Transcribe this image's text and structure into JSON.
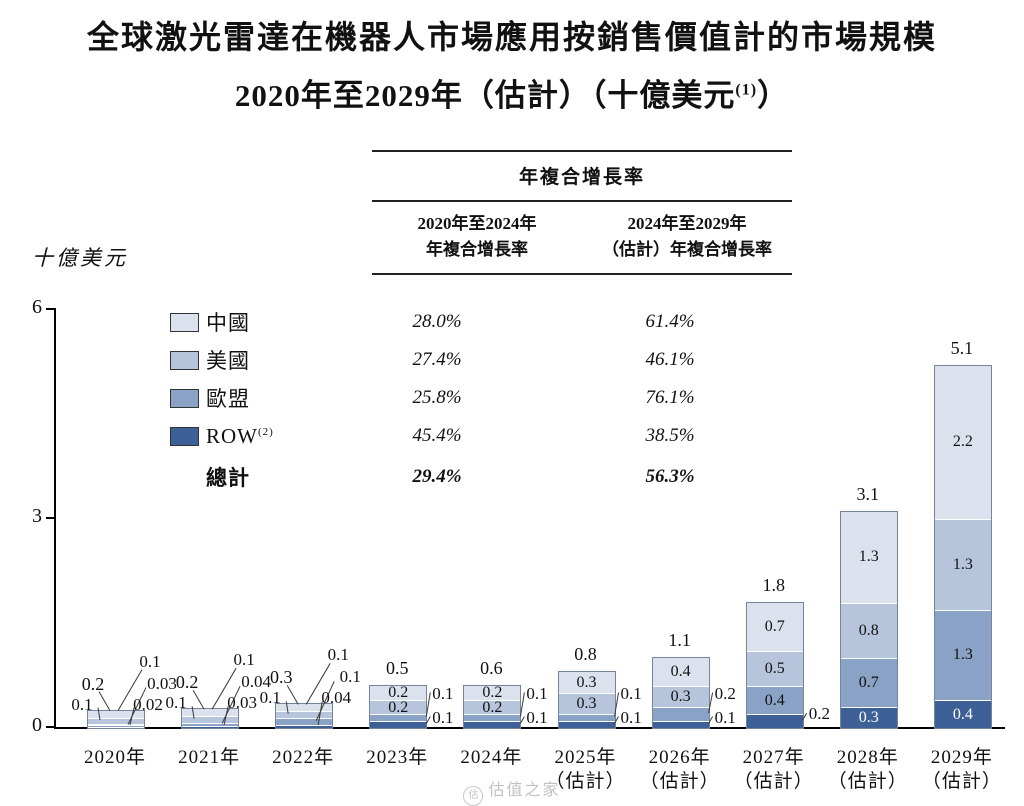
{
  "title": {
    "line1": "全球激光雷達在機器人市場應用按銷售價值計的市場規模",
    "line2_main": "2020年至2029年（估計）（十億美元",
    "line2_sup": "(1)",
    "line2_close": "）"
  },
  "cagr": {
    "header_title": "年複合增長率",
    "col1_line1": "2020年至2024年",
    "col1_line2": "年複合增長率",
    "col2_line1": "2024年至2029年",
    "col2_line2": "（估計）年複合增長率",
    "rows": [
      {
        "name": "中國",
        "sup": "",
        "c1": "28.0%",
        "c2": "61.4%",
        "total": false
      },
      {
        "name": "美國",
        "sup": "",
        "c1": "27.4%",
        "c2": "46.1%",
        "total": false
      },
      {
        "name": "歐盟",
        "sup": "",
        "c1": "25.8%",
        "c2": "76.1%",
        "total": false
      },
      {
        "name": "ROW",
        "sup": "(2)",
        "c1": "45.4%",
        "c2": "38.5%",
        "total": false
      },
      {
        "name": "總計",
        "sup": "",
        "c1": "29.4%",
        "c2": "56.3%",
        "total": true
      }
    ]
  },
  "chart_data": {
    "type": "bar",
    "stacked": true,
    "title": "全球激光雷達在機器人市場應用按銷售價值計的市場規模 2020年至2029年（估計）（十億美元）",
    "ylabel": "十億美元",
    "ylim": [
      0,
      6
    ],
    "yticks": [
      0,
      3,
      6
    ],
    "grid": false,
    "legend_position": "top-left",
    "categories": [
      "2020年",
      "2021年",
      "2022年",
      "2023年",
      "2024年",
      "2025年",
      "2026年",
      "2027年",
      "2028年",
      "2029年"
    ],
    "category_sublabels": [
      "",
      "",
      "",
      "",
      "",
      "（估計）",
      "（估計）",
      "（估計）",
      "（估計）",
      "（估計）"
    ],
    "series": [
      {
        "name": "中國",
        "color": "#dbe2ee",
        "values": [
          0.1,
          0.1,
          0.1,
          0.2,
          0.2,
          0.3,
          0.4,
          0.7,
          1.3,
          2.2
        ],
        "labels": [
          "0.1",
          "0.1",
          "0.1",
          "0.2",
          "0.2",
          "0.3",
          "0.4",
          "0.7",
          "1.3",
          "2.2"
        ]
      },
      {
        "name": "美國",
        "color": "#b7c5dc",
        "values": [
          0.1,
          0.1,
          0.1,
          0.2,
          0.2,
          0.3,
          0.3,
          0.5,
          0.8,
          1.3
        ],
        "labels": [
          "0.1",
          "0.1",
          "0.1",
          "0.2",
          "0.2",
          "0.3",
          "0.3",
          "0.5",
          "0.8",
          "1.3"
        ]
      },
      {
        "name": "歐盟",
        "color": "#8aa2c6",
        "values": [
          0.03,
          0.04,
          0.1,
          0.1,
          0.1,
          0.1,
          0.2,
          0.4,
          0.7,
          1.3
        ],
        "labels": [
          "0.03",
          "0.04",
          "0.1",
          "0.1",
          "0.1",
          "0.1",
          "0.2",
          "0.4",
          "0.7",
          "1.3"
        ]
      },
      {
        "name": "ROW",
        "color": "#3d6097",
        "values": [
          0.02,
          0.03,
          0.04,
          0.1,
          0.1,
          0.1,
          0.1,
          0.2,
          0.3,
          0.4
        ],
        "labels": [
          "0.02",
          "0.03",
          "0.04",
          "0.1",
          "0.1",
          "0.1",
          "0.1",
          "0.2",
          "0.3",
          "0.4"
        ]
      }
    ],
    "totals": [
      "0.2",
      "0.2",
      "0.3",
      "0.5",
      "0.6",
      "0.8",
      "1.1",
      "1.8",
      "3.1",
      "5.1"
    ]
  },
  "watermark": {
    "text": "估值之家"
  }
}
